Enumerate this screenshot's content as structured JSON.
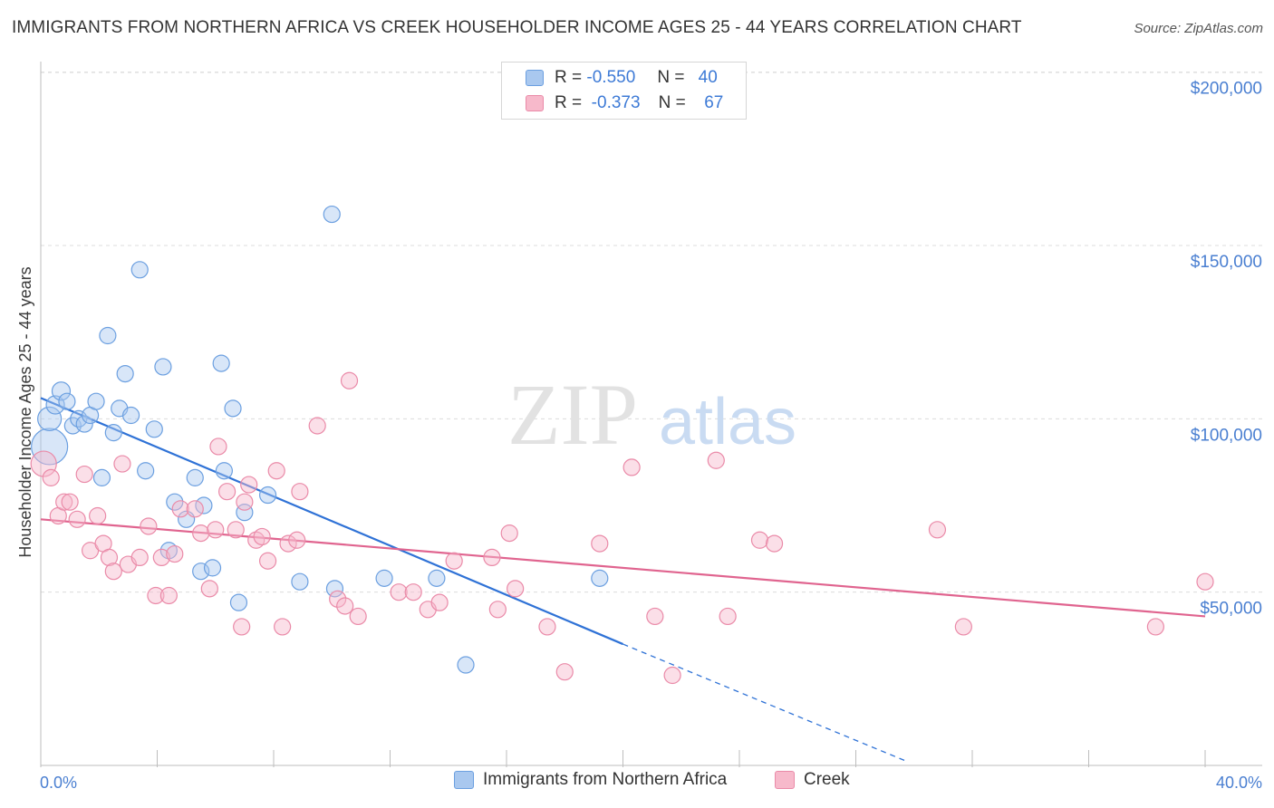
{
  "title": "IMMIGRANTS FROM NORTHERN AFRICA VS CREEK HOUSEHOLDER INCOME AGES 25 - 44 YEARS CORRELATION CHART",
  "source": "Source: ZipAtlas.com",
  "watermark": {
    "zip": "ZIP",
    "atlas": "atlas"
  },
  "legend": {
    "rows": [
      {
        "r_label": "R =",
        "r_value": "-0.550",
        "n_label": "N =",
        "n_value": "40",
        "color": "#a9c8ef",
        "border": "#6b9fe0"
      },
      {
        "r_label": "R =",
        "r_value": "-0.373",
        "n_label": "N =",
        "n_value": "67",
        "color": "#f7b9cb",
        "border": "#ea8aa8"
      }
    ]
  },
  "bottom_legend": [
    {
      "label": "Immigrants from Northern Africa",
      "color": "#a9c8ef",
      "border": "#6b9fe0"
    },
    {
      "label": "Creek",
      "color": "#f7b9cb",
      "border": "#ea8aa8"
    }
  ],
  "chart_data": {
    "type": "scatter",
    "title": "IMMIGRANTS FROM NORTHERN AFRICA VS CREEK HOUSEHOLDER INCOME AGES 25 - 44 YEARS CORRELATION CHART",
    "xlabel": "",
    "ylabel": "Householder Income Ages 25 - 44 years",
    "xlim": [
      0,
      40
    ],
    "ylim": [
      0,
      210000
    ],
    "x_tick_labels": [
      "0.0%",
      "40.0%"
    ],
    "y_tick_values": [
      50000,
      100000,
      150000,
      200000
    ],
    "y_tick_labels": [
      "$50,000",
      "$100,000",
      "$150,000",
      "$200,000"
    ],
    "grid": true,
    "legend_position": "top-center",
    "series": [
      {
        "name": "Immigrants from Northern Africa",
        "color": "#6b9fe0",
        "fill": "#a9c8ef",
        "trend": {
          "x0": 0.0,
          "y0": 106000,
          "x1": 20.0,
          "y1": 35000,
          "dash_to_x": 29.8,
          "dash_to_y": 1000
        },
        "points": [
          [
            0.3,
            92000,
            20
          ],
          [
            0.3,
            100000,
            13
          ],
          [
            0.5,
            104000,
            10
          ],
          [
            0.7,
            108000,
            10
          ],
          [
            0.9,
            105000,
            9
          ],
          [
            1.1,
            98000,
            9
          ],
          [
            1.3,
            100000,
            9
          ],
          [
            1.5,
            98500,
            9
          ],
          [
            1.7,
            101000,
            9
          ],
          [
            1.9,
            105000,
            9
          ],
          [
            2.1,
            83000,
            9
          ],
          [
            2.3,
            124000,
            9
          ],
          [
            2.5,
            96000,
            9
          ],
          [
            2.7,
            103000,
            9
          ],
          [
            2.9,
            113000,
            9
          ],
          [
            3.1,
            101000,
            9
          ],
          [
            3.4,
            143000,
            9
          ],
          [
            3.6,
            85000,
            9
          ],
          [
            3.9,
            97000,
            9
          ],
          [
            4.2,
            115000,
            9
          ],
          [
            4.4,
            62000,
            9
          ],
          [
            4.6,
            76000,
            9
          ],
          [
            5.0,
            71000,
            9
          ],
          [
            5.3,
            83000,
            9
          ],
          [
            5.5,
            56000,
            9
          ],
          [
            5.6,
            75000,
            9
          ],
          [
            5.9,
            57000,
            9
          ],
          [
            6.2,
            116000,
            9
          ],
          [
            6.3,
            85000,
            9
          ],
          [
            6.6,
            103000,
            9
          ],
          [
            6.8,
            47000,
            9
          ],
          [
            7.0,
            73000,
            9
          ],
          [
            7.8,
            78000,
            9
          ],
          [
            8.9,
            53000,
            9
          ],
          [
            10.0,
            159000,
            9
          ],
          [
            10.1,
            51000,
            9
          ],
          [
            11.8,
            54000,
            9
          ],
          [
            13.6,
            54000,
            9
          ],
          [
            14.6,
            29000,
            9
          ],
          [
            19.2,
            54000,
            9
          ]
        ]
      },
      {
        "name": "Creek",
        "color": "#ea8aa8",
        "fill": "#f7b9cb",
        "trend": {
          "x0": 0.0,
          "y0": 71000,
          "x1": 40.0,
          "y1": 43000
        },
        "points": [
          [
            0.1,
            87000,
            14
          ],
          [
            0.35,
            83000,
            9
          ],
          [
            0.6,
            72000,
            9
          ],
          [
            0.8,
            76000,
            9
          ],
          [
            1.0,
            76000,
            9
          ],
          [
            1.25,
            71000,
            9
          ],
          [
            1.5,
            84000,
            9
          ],
          [
            1.7,
            62000,
            9
          ],
          [
            1.95,
            72000,
            9
          ],
          [
            2.15,
            64000,
            9
          ],
          [
            2.35,
            60000,
            9
          ],
          [
            2.5,
            56000,
            9
          ],
          [
            2.8,
            87000,
            9
          ],
          [
            3.0,
            58000,
            9
          ],
          [
            3.4,
            60000,
            9
          ],
          [
            3.7,
            69000,
            9
          ],
          [
            3.95,
            49000,
            9
          ],
          [
            4.15,
            60000,
            9
          ],
          [
            4.4,
            49000,
            9
          ],
          [
            4.6,
            61000,
            9
          ],
          [
            4.8,
            74000,
            9
          ],
          [
            5.3,
            74000,
            9
          ],
          [
            5.5,
            67000,
            9
          ],
          [
            5.8,
            51000,
            9
          ],
          [
            6.0,
            68000,
            9
          ],
          [
            6.1,
            92000,
            9
          ],
          [
            6.4,
            79000,
            9
          ],
          [
            6.7,
            68000,
            9
          ],
          [
            6.9,
            40000,
            9
          ],
          [
            7.0,
            76000,
            9
          ],
          [
            7.15,
            81000,
            9
          ],
          [
            7.4,
            65000,
            9
          ],
          [
            7.6,
            66000,
            9
          ],
          [
            7.8,
            59000,
            9
          ],
          [
            8.1,
            85000,
            9
          ],
          [
            8.3,
            40000,
            9
          ],
          [
            8.5,
            64000,
            9
          ],
          [
            8.8,
            65000,
            9
          ],
          [
            8.9,
            79000,
            9
          ],
          [
            9.5,
            98000,
            9
          ],
          [
            10.2,
            48000,
            9
          ],
          [
            10.45,
            46000,
            9
          ],
          [
            10.6,
            111000,
            9
          ],
          [
            10.9,
            43000,
            9
          ],
          [
            12.3,
            50000,
            9
          ],
          [
            12.8,
            50000,
            9
          ],
          [
            13.3,
            45000,
            9
          ],
          [
            13.7,
            47000,
            9
          ],
          [
            14.2,
            59000,
            9
          ],
          [
            15.5,
            60000,
            9
          ],
          [
            15.7,
            45000,
            9
          ],
          [
            16.1,
            67000,
            9
          ],
          [
            16.3,
            51000,
            9
          ],
          [
            17.4,
            40000,
            9
          ],
          [
            18.0,
            27000,
            9
          ],
          [
            19.2,
            64000,
            9
          ],
          [
            20.3,
            86000,
            9
          ],
          [
            21.1,
            43000,
            9
          ],
          [
            21.7,
            26000,
            9
          ],
          [
            23.2,
            88000,
            9
          ],
          [
            23.6,
            43000,
            9
          ],
          [
            24.7,
            65000,
            9
          ],
          [
            25.2,
            64000,
            9
          ],
          [
            30.8,
            68000,
            9
          ],
          [
            31.7,
            40000,
            9
          ],
          [
            38.3,
            40000,
            9
          ],
          [
            40.0,
            53000,
            9
          ]
        ]
      }
    ]
  }
}
